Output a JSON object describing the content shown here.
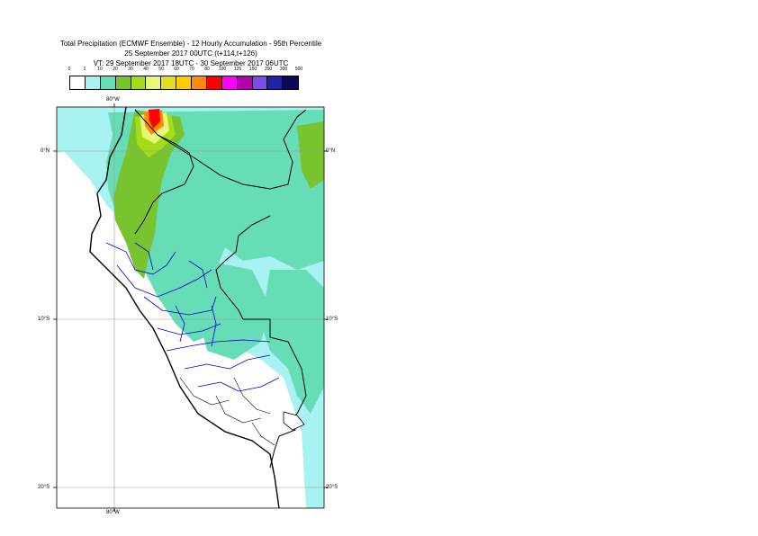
{
  "header": {
    "title": "Total Precipitation (ECMWF Ensemble) - 12 Hourly Accumulation - 95th Percentile",
    "base_time": "25 September 2017 00UTC (t+114,t+126)",
    "valid_time": "VT: 29 September 2017 18UTC - 30 September 2017 06UTC"
  },
  "legend": {
    "thresholds": [
      "0",
      "1",
      "10",
      "20",
      "30",
      "40",
      "50",
      "60",
      "70",
      "80",
      "100",
      "125",
      "150",
      "200",
      "300",
      "500"
    ],
    "colors": [
      "#ffffff",
      "#a8f2f2",
      "#66ddb6",
      "#79c42e",
      "#a5dc1a",
      "#e8f777",
      "#e2e01e",
      "#ffcc00",
      "#ff8c00",
      "#ff0000",
      "#ff00ff",
      "#b300b3",
      "#7b4de8",
      "#2222a6",
      "#0b0b55"
    ]
  },
  "map": {
    "region": "Peru",
    "colors": {
      "ocean_light": "#a8f2f2",
      "land_green": "#66ddb6",
      "heavy": "#79c42e",
      "lime": "#a5dc1a",
      "yellow": "#e8f777",
      "orange": "#ff8c00",
      "red": "#ff0000",
      "country_border": "#000000",
      "region_border": "#0000cc",
      "gridline": "#999999"
    },
    "labels": {
      "lon_top": "80°W",
      "lon_bottom": "80°W",
      "lat_0_left": "0°N",
      "lat_0_right": "0°N",
      "lat_10_left": "10°S",
      "lat_10_right": "10°S",
      "lat_20_left": "20°S",
      "lat_20_right": "20°S"
    }
  }
}
